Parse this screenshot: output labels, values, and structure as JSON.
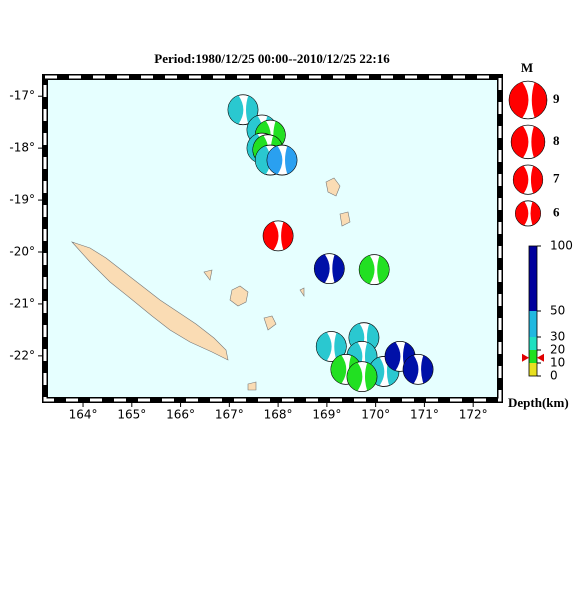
{
  "title": "Period:1980/12/25 00:00--2010/12/25 22:16",
  "map": {
    "lonlim": [
      163.22,
      172.55
    ],
    "latlim": [
      -22.85,
      -16.63
    ],
    "ocean_color": "#e6ffff",
    "lonticks": [
      {
        "value": 164,
        "label": "164°"
      },
      {
        "value": 165,
        "label": "165°"
      },
      {
        "value": 166,
        "label": "166°"
      },
      {
        "value": 167,
        "label": "167°"
      },
      {
        "value": 168,
        "label": "168°"
      },
      {
        "value": 169,
        "label": "169°"
      },
      {
        "value": 170,
        "label": "170°"
      },
      {
        "value": 171,
        "label": "171°"
      },
      {
        "value": 172,
        "label": "172°"
      }
    ],
    "latticks": [
      {
        "value": -17,
        "label": "-17°"
      },
      {
        "value": -18,
        "label": "-18°"
      },
      {
        "value": -19,
        "label": "-19°"
      },
      {
        "value": -20,
        "label": "-20°"
      },
      {
        "value": -21,
        "label": "-21°"
      },
      {
        "value": -22,
        "label": "-22°"
      }
    ]
  },
  "events": [
    {
      "lon": 167.28,
      "lat": -17.26,
      "color": "#2ac8d0"
    },
    {
      "lon": 167.67,
      "lat": -17.65,
      "color": "#2ac8d0"
    },
    {
      "lon": 167.84,
      "lat": -17.75,
      "color": "#22e022"
    },
    {
      "lon": 167.67,
      "lat": -18.0,
      "color": "#2ac8d0"
    },
    {
      "lon": 167.79,
      "lat": -18.03,
      "color": "#22e022"
    },
    {
      "lon": 167.84,
      "lat": -18.23,
      "color": "#2ac8d0"
    },
    {
      "lon": 168.08,
      "lat": -18.23,
      "color": "#2aa0f0"
    },
    {
      "lon": 169.05,
      "lat": -20.32,
      "color": "#0010a8"
    },
    {
      "lon": 169.97,
      "lat": -20.34,
      "color": "#22e022"
    },
    {
      "lon": 169.09,
      "lat": -21.82,
      "color": "#2ac8d0"
    },
    {
      "lon": 169.76,
      "lat": -21.65,
      "color": "#2ac8d0"
    },
    {
      "lon": 169.72,
      "lat": -22.01,
      "color": "#2ac8d0"
    },
    {
      "lon": 169.39,
      "lat": -22.26,
      "color": "#22e022"
    },
    {
      "lon": 170.17,
      "lat": -22.3,
      "color": "#2ac8d0"
    },
    {
      "lon": 169.72,
      "lat": -22.4,
      "color": "#22e022"
    },
    {
      "lon": 170.5,
      "lat": -22.01,
      "color": "#0010a8"
    },
    {
      "lon": 170.87,
      "lat": -22.26,
      "color": "#0010a8"
    },
    {
      "lon": 168.0,
      "lat": -19.69,
      "color": "#ff0000"
    }
  ],
  "magnitude_legend": {
    "title": "M",
    "color": "#ff0000",
    "items": [
      9,
      8,
      7,
      6
    ]
  },
  "depth_scale": {
    "label": "Depth(km)",
    "range": [
      0,
      100
    ],
    "ticks": [
      100,
      50,
      30,
      20,
      10,
      0
    ],
    "colors": [
      "#00009c",
      "#20b8e0",
      "#20e0c0",
      "#20e020",
      "#e8e020"
    ],
    "marker": 14
  }
}
